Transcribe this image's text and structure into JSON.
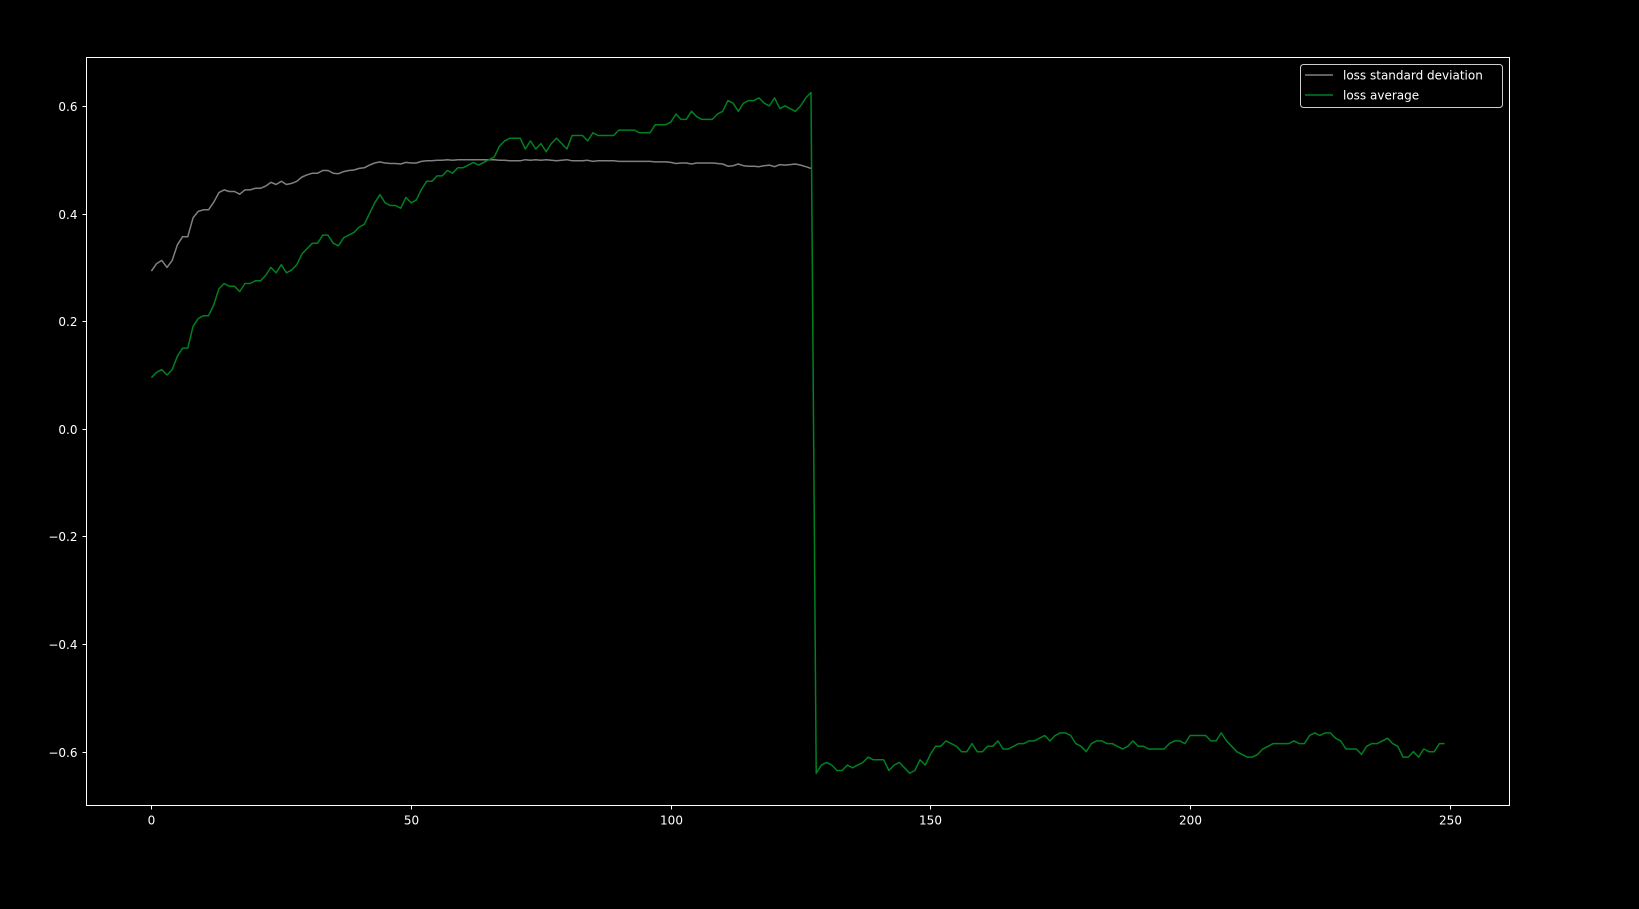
{
  "chart_data": {
    "type": "line",
    "title": "",
    "xlabel": "",
    "ylabel": "",
    "xlim": [
      -12.5,
      261.5
    ],
    "ylim": [
      -0.7,
      0.69
    ],
    "x_ticks": [
      0,
      50,
      100,
      150,
      200,
      250
    ],
    "x_tick_labels": [
      "0",
      "50",
      "100",
      "150",
      "200",
      "250"
    ],
    "y_ticks": [
      -0.6,
      -0.4,
      -0.2,
      0.0,
      0.2,
      0.4,
      0.6
    ],
    "y_tick_labels": [
      "−0.6",
      "−0.4",
      "−0.2",
      "0.0",
      "0.2",
      "0.4",
      "0.6"
    ],
    "grid": false,
    "background": "#000000",
    "foreground": "#ffffff",
    "legend": {
      "placement": "top-right"
    },
    "series": [
      {
        "name": "loss standard deviation",
        "color": "#808080",
        "x_start": 0,
        "values": [
          0.293,
          0.307,
          0.313,
          0.3,
          0.313,
          0.342,
          0.357,
          0.357,
          0.392,
          0.404,
          0.407,
          0.407,
          0.421,
          0.439,
          0.444,
          0.441,
          0.441,
          0.436,
          0.444,
          0.444,
          0.447,
          0.447,
          0.451,
          0.458,
          0.454,
          0.46,
          0.454,
          0.456,
          0.46,
          0.468,
          0.472,
          0.475,
          0.475,
          0.48,
          0.48,
          0.475,
          0.474,
          0.478,
          0.48,
          0.481,
          0.484,
          0.485,
          0.49,
          0.494,
          0.496,
          0.494,
          0.493,
          0.493,
          0.492,
          0.495,
          0.494,
          0.494,
          0.497,
          0.498,
          0.498,
          0.499,
          0.499,
          0.5,
          0.499,
          0.5,
          0.5,
          0.5,
          0.5,
          0.5,
          0.5,
          0.5,
          0.5,
          0.499,
          0.499,
          0.498,
          0.498,
          0.498,
          0.5,
          0.499,
          0.5,
          0.499,
          0.5,
          0.499,
          0.498,
          0.499,
          0.5,
          0.498,
          0.498,
          0.498,
          0.499,
          0.497,
          0.498,
          0.498,
          0.498,
          0.498,
          0.497,
          0.497,
          0.497,
          0.497,
          0.497,
          0.497,
          0.497,
          0.496,
          0.496,
          0.496,
          0.495,
          0.493,
          0.494,
          0.494,
          0.492,
          0.494,
          0.494,
          0.494,
          0.494,
          0.493,
          0.492,
          0.488,
          0.489,
          0.492,
          0.489,
          0.488,
          0.488,
          0.487,
          0.489,
          0.49,
          0.487,
          0.491,
          0.49,
          0.491,
          0.492,
          0.49,
          0.487,
          0.484
        ]
      },
      {
        "name": "loss average",
        "color": "#008020",
        "x_start": 0,
        "values": [
          0.095,
          0.105,
          0.11,
          0.1,
          0.11,
          0.135,
          0.15,
          0.15,
          0.19,
          0.205,
          0.21,
          0.21,
          0.23,
          0.26,
          0.27,
          0.265,
          0.265,
          0.255,
          0.27,
          0.27,
          0.275,
          0.275,
          0.285,
          0.3,
          0.29,
          0.305,
          0.29,
          0.295,
          0.305,
          0.325,
          0.335,
          0.345,
          0.345,
          0.36,
          0.36,
          0.345,
          0.34,
          0.355,
          0.36,
          0.365,
          0.375,
          0.38,
          0.4,
          0.42,
          0.435,
          0.42,
          0.415,
          0.415,
          0.41,
          0.43,
          0.42,
          0.425,
          0.445,
          0.46,
          0.46,
          0.47,
          0.47,
          0.48,
          0.475,
          0.485,
          0.485,
          0.49,
          0.495,
          0.49,
          0.495,
          0.5,
          0.505,
          0.525,
          0.535,
          0.54,
          0.54,
          0.54,
          0.52,
          0.535,
          0.52,
          0.53,
          0.515,
          0.53,
          0.54,
          0.53,
          0.52,
          0.545,
          0.545,
          0.545,
          0.535,
          0.55,
          0.545,
          0.545,
          0.545,
          0.545,
          0.555,
          0.555,
          0.555,
          0.555,
          0.55,
          0.55,
          0.55,
          0.565,
          0.565,
          0.565,
          0.57,
          0.585,
          0.575,
          0.575,
          0.59,
          0.58,
          0.575,
          0.575,
          0.575,
          0.585,
          0.59,
          0.61,
          0.605,
          0.59,
          0.605,
          0.61,
          0.61,
          0.615,
          0.605,
          0.6,
          0.615,
          0.595,
          0.6,
          0.595,
          0.59,
          0.6,
          0.615,
          0.625,
          -0.64,
          -0.625,
          -0.62,
          -0.625,
          -0.635,
          -0.635,
          -0.625,
          -0.63,
          -0.625,
          -0.62,
          -0.61,
          -0.615,
          -0.615,
          -0.615,
          -0.635,
          -0.625,
          -0.62,
          -0.63,
          -0.64,
          -0.635,
          -0.615,
          -0.625,
          -0.605,
          -0.59,
          -0.59,
          -0.58,
          -0.585,
          -0.59,
          -0.6,
          -0.6,
          -0.585,
          -0.6,
          -0.6,
          -0.59,
          -0.59,
          -0.58,
          -0.595,
          -0.595,
          -0.59,
          -0.585,
          -0.585,
          -0.58,
          -0.58,
          -0.575,
          -0.57,
          -0.58,
          -0.57,
          -0.565,
          -0.565,
          -0.57,
          -0.585,
          -0.59,
          -0.6,
          -0.585,
          -0.58,
          -0.58,
          -0.585,
          -0.585,
          -0.59,
          -0.595,
          -0.59,
          -0.58,
          -0.59,
          -0.59,
          -0.595,
          -0.595,
          -0.595,
          -0.595,
          -0.585,
          -0.58,
          -0.58,
          -0.585,
          -0.57,
          -0.57,
          -0.57,
          -0.57,
          -0.58,
          -0.58,
          -0.565,
          -0.58,
          -0.59,
          -0.6,
          -0.605,
          -0.61,
          -0.61,
          -0.605,
          -0.595,
          -0.59,
          -0.585,
          -0.585,
          -0.585,
          -0.585,
          -0.58,
          -0.585,
          -0.585,
          -0.57,
          -0.565,
          -0.57,
          -0.565,
          -0.565,
          -0.575,
          -0.58,
          -0.595,
          -0.595,
          -0.595,
          -0.605,
          -0.59,
          -0.585,
          -0.585,
          -0.58,
          -0.575,
          -0.585,
          -0.59,
          -0.61,
          -0.61,
          -0.6,
          -0.61,
          -0.595,
          -0.6,
          -0.6,
          -0.585,
          -0.585
        ]
      }
    ]
  }
}
